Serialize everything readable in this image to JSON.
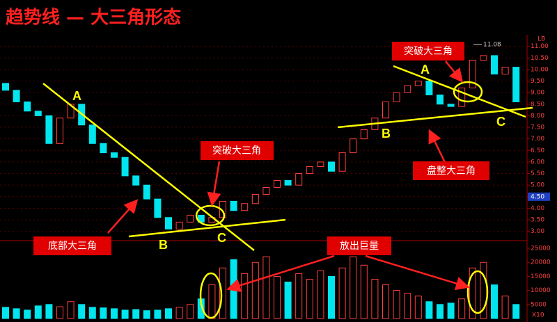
{
  "title": "趋势线 — 大三角形态",
  "annotations": {
    "a1": "A",
    "b1": "B",
    "c1": "C",
    "a2": "A",
    "b2": "B",
    "c2": "C",
    "break1": "突破大三角",
    "bottom": "底部大三角",
    "break2": "突破大三角",
    "consolidate": "盘整大三角",
    "volume": "放出巨量"
  },
  "chart_data": [
    {
      "type": "candlestick",
      "up_color": "#ff4040",
      "down_color": "#00e5ee",
      "ylim": [
        2.6,
        11.5
      ],
      "yticks": [
        {
          "value": 3,
          "label": "3.00"
        },
        {
          "value": 3.5,
          "label": "3.50"
        },
        {
          "value": 4,
          "label": "4.00"
        },
        {
          "value": 4.5,
          "label": "4.50"
        },
        {
          "value": 5,
          "label": "5.00"
        },
        {
          "value": 5.5,
          "label": "5.50"
        },
        {
          "value": 6,
          "label": "6.00"
        },
        {
          "value": 6.5,
          "label": "6.50"
        },
        {
          "value": 7,
          "label": "7.00"
        },
        {
          "value": 7.5,
          "label": "7.50"
        },
        {
          "value": 8,
          "label": "8.00"
        },
        {
          "value": 8.5,
          "label": "8.50"
        },
        {
          "value": 9,
          "label": "9.00"
        },
        {
          "value": 9.5,
          "label": "9.50"
        },
        {
          "value": 10,
          "label": "10.00"
        },
        {
          "value": 10.5,
          "label": "10.50"
        },
        {
          "value": 11,
          "label": "11.00"
        }
      ],
      "axis_note": "LB",
      "high": 11.08,
      "current_price": {
        "value": 4.5,
        "label": "4.50"
      },
      "open": [
        9.4,
        9.1,
        8.6,
        8.2,
        8.0,
        6.8,
        7.9,
        8.5,
        7.6,
        6.8,
        6.4,
        6.2,
        5.4,
        5.0,
        4.4,
        3.6,
        3.1,
        3.4,
        3.7,
        3.4,
        3.6,
        4.3,
        3.9,
        4.2,
        4.6,
        4.9,
        5.2,
        5.0,
        5.5,
        5.8,
        6.0,
        5.6,
        6.4,
        7.0,
        7.4,
        7.9,
        8.6,
        9.0,
        9.3,
        9.5,
        8.9,
        8.5,
        8.4,
        9.2,
        10.4,
        10.6,
        9.8,
        10.1
      ],
      "close": [
        9.1,
        8.6,
        8.2,
        8.0,
        6.8,
        7.9,
        8.5,
        7.6,
        6.8,
        6.4,
        6.2,
        5.4,
        5.0,
        4.4,
        3.6,
        3.1,
        3.4,
        3.7,
        3.4,
        3.6,
        4.3,
        3.9,
        4.2,
        4.6,
        4.9,
        5.2,
        5.0,
        5.5,
        5.8,
        6.0,
        5.6,
        6.4,
        7.0,
        7.4,
        7.9,
        8.6,
        9.0,
        9.3,
        9.5,
        8.9,
        8.5,
        8.4,
        9.2,
        10.4,
        10.6,
        9.8,
        10.1,
        8.6
      ]
    },
    {
      "type": "bar",
      "unit_label": "X10",
      "ylim": [
        0,
        26000
      ],
      "yticks": [
        5000,
        10000,
        15000,
        20000,
        25000
      ],
      "values": [
        4000,
        3500,
        3000,
        4500,
        5000,
        4200,
        6000,
        5000,
        4000,
        3800,
        3500,
        3000,
        3200,
        2800,
        3000,
        3500,
        4000,
        5000,
        7000,
        12000,
        18000,
        21000,
        16000,
        20000,
        22000,
        15000,
        13000,
        16000,
        14000,
        17000,
        15000,
        18000,
        22000,
        19000,
        14000,
        12000,
        10000,
        9000,
        8000,
        6000,
        5000,
        5500,
        7000,
        18000,
        20000,
        12000,
        8000,
        5000
      ]
    }
  ]
}
